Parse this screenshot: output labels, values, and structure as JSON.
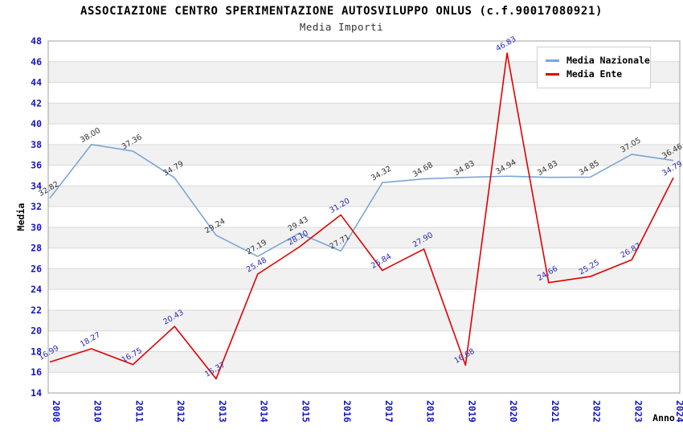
{
  "header": {
    "title": "ASSOCIAZIONE CENTRO SPERIMENTAZIONE AUTOSVILUPPO ONLUS (c.f.90017080921)",
    "subtitle": "Media Importi"
  },
  "legend": {
    "position": "top-right",
    "items": [
      {
        "label": "Media Nazionale",
        "color": "#7aa6d8"
      },
      {
        "label": "Media Ente",
        "color": "#e00000"
      }
    ]
  },
  "chart_data": {
    "type": "line",
    "title": "ASSOCIAZIONE CENTRO SPERIMENTAZIONE AUTOSVILUPPO ONLUS (c.f.90017080921)",
    "subtitle": "Media Importi",
    "xlabel": "Anno",
    "ylabel": "Media",
    "ylim": [
      14,
      48
    ],
    "ytick_step": 2,
    "grid": true,
    "band_fill": "alternating horizontal bands every 2 units",
    "legend_position": "top-right",
    "categories": [
      "2008",
      "2010",
      "2011",
      "2012",
      "2013",
      "2014",
      "2015",
      "2016",
      "2017",
      "2018",
      "2019",
      "2020",
      "2021",
      "2022",
      "2023",
      "2024"
    ],
    "series": [
      {
        "name": "Media Nazionale",
        "color": "#7aa6d8",
        "label_color": "#303030",
        "values": [
          32.82,
          38.0,
          37.36,
          34.79,
          29.24,
          27.19,
          29.43,
          27.71,
          34.32,
          34.68,
          34.83,
          34.94,
          34.83,
          34.85,
          37.05,
          36.46
        ],
        "labels": [
          "32.82",
          "38.00",
          "37.36",
          "34.79",
          "29.24",
          "27.19",
          "29.43",
          "27.71",
          "34.32",
          "34.68",
          "34.83",
          "34.94",
          "34.83",
          "34.85",
          "37.05",
          "36.46"
        ]
      },
      {
        "name": "Media Ente",
        "color": "#e00000",
        "label_color": "#2828b4",
        "values": [
          16.99,
          18.27,
          16.75,
          20.43,
          15.37,
          25.48,
          28.1,
          31.2,
          25.84,
          27.9,
          16.68,
          46.83,
          24.66,
          25.25,
          26.87,
          34.79
        ],
        "labels": [
          "16.99",
          "18.27",
          "16.75",
          "20.43",
          "15.37",
          "25.48",
          "28.10",
          "31.20",
          "25.84",
          "27.90",
          "16.68",
          "46.83",
          "24.66",
          "25.25",
          "26.87",
          "34.79"
        ]
      }
    ],
    "yticks": [
      14,
      16,
      18,
      20,
      22,
      24,
      26,
      28,
      30,
      32,
      34,
      36,
      38,
      40,
      42,
      44,
      46,
      48
    ]
  },
  "colors": {
    "band_gray": "#f1f1f1",
    "gridline": "#d9d9d9",
    "plot_border": "#a0a0a0",
    "tick_label_blue": "#1414cc",
    "background": "#ffffff"
  }
}
